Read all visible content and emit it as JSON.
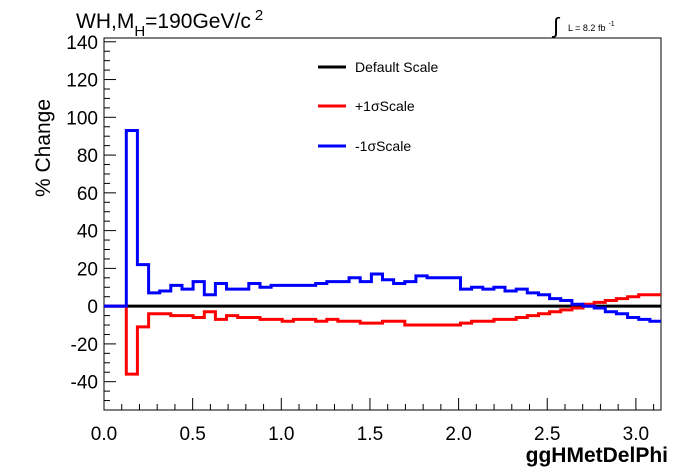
{
  "title": {
    "main": "WH,M",
    "sub": "H",
    "value": "=190GeV/c",
    "sup": "2"
  },
  "lumi": {
    "integral": "∫",
    "text": "L = 8.2 fb",
    "sup": "-1"
  },
  "chart_data": {
    "type": "line",
    "xlabel": "ggHMetDelPhi",
    "ylabel": "% Change",
    "xlim": [
      0,
      3.1416
    ],
    "ylim": [
      -55,
      142
    ],
    "xticks": [
      0.0,
      0.5,
      1.0,
      1.5,
      2.0,
      2.5,
      3.0
    ],
    "xtick_labels": [
      "0.0",
      "0.5",
      "1.0",
      "1.5",
      "2.0",
      "2.5",
      "3.0"
    ],
    "yticks": [
      -40,
      -20,
      0,
      20,
      40,
      60,
      80,
      100,
      120,
      140
    ],
    "ytick_labels": [
      "-40",
      "-20",
      "0",
      "20",
      "40",
      "60",
      "80",
      "100",
      "120",
      "140"
    ],
    "bin_edges": [
      0.0,
      0.0628,
      0.1257,
      0.1885,
      0.2513,
      0.3142,
      0.377,
      0.4398,
      0.5027,
      0.5655,
      0.6283,
      0.6912,
      0.754,
      0.8168,
      0.8796,
      0.9425,
      1.0053,
      1.0681,
      1.131,
      1.1938,
      1.2566,
      1.3195,
      1.3823,
      1.4451,
      1.508,
      1.5708,
      1.6336,
      1.6965,
      1.7593,
      1.8221,
      1.885,
      1.9478,
      2.0106,
      2.0735,
      2.1363,
      2.1991,
      2.2619,
      2.3248,
      2.3876,
      2.4504,
      2.5133,
      2.5761,
      2.6389,
      2.7018,
      2.7646,
      2.8274,
      2.8903,
      2.9531,
      3.0159,
      3.0788,
      3.1416
    ],
    "series": [
      {
        "name": "Default Scale",
        "color": "#000000",
        "values": [
          0,
          0,
          0,
          0,
          0,
          0,
          0,
          0,
          0,
          0,
          0,
          0,
          0,
          0,
          0,
          0,
          0,
          0,
          0,
          0,
          0,
          0,
          0,
          0,
          0,
          0,
          0,
          0,
          0,
          0,
          0,
          0,
          0,
          0,
          0,
          0,
          0,
          0,
          0,
          0,
          0,
          0,
          0,
          0,
          0,
          0,
          0,
          0,
          0,
          0
        ]
      },
      {
        "name": "+1σScale",
        "color": "#ff0000",
        "values": [
          0,
          0,
          -36,
          -11,
          -4,
          -4,
          -5,
          -5,
          -6,
          -3,
          -7,
          -5,
          -6,
          -6,
          -7,
          -7,
          -8,
          -7,
          -7,
          -8,
          -7,
          -8,
          -8,
          -9,
          -9,
          -8,
          -8,
          -10,
          -10,
          -10,
          -10,
          -10,
          -9,
          -8,
          -8,
          -7,
          -7,
          -6,
          -5,
          -4,
          -3,
          -2,
          -1,
          1,
          2,
          3,
          4,
          5,
          6,
          6
        ]
      },
      {
        "name": "-1σScale",
        "color": "#0000ff",
        "values": [
          0,
          0,
          93,
          22,
          7,
          8,
          11,
          9,
          13,
          6,
          12,
          9,
          9,
          12,
          10,
          11,
          11,
          11,
          11,
          12,
          13,
          13,
          15,
          13,
          17,
          14,
          12,
          13,
          16,
          15,
          15,
          15,
          9,
          10,
          9,
          10,
          8,
          9,
          7,
          6,
          4,
          3,
          1,
          0,
          -1,
          -3,
          -4,
          -6,
          -7,
          -8
        ]
      }
    ],
    "legend_position": "top-center"
  }
}
